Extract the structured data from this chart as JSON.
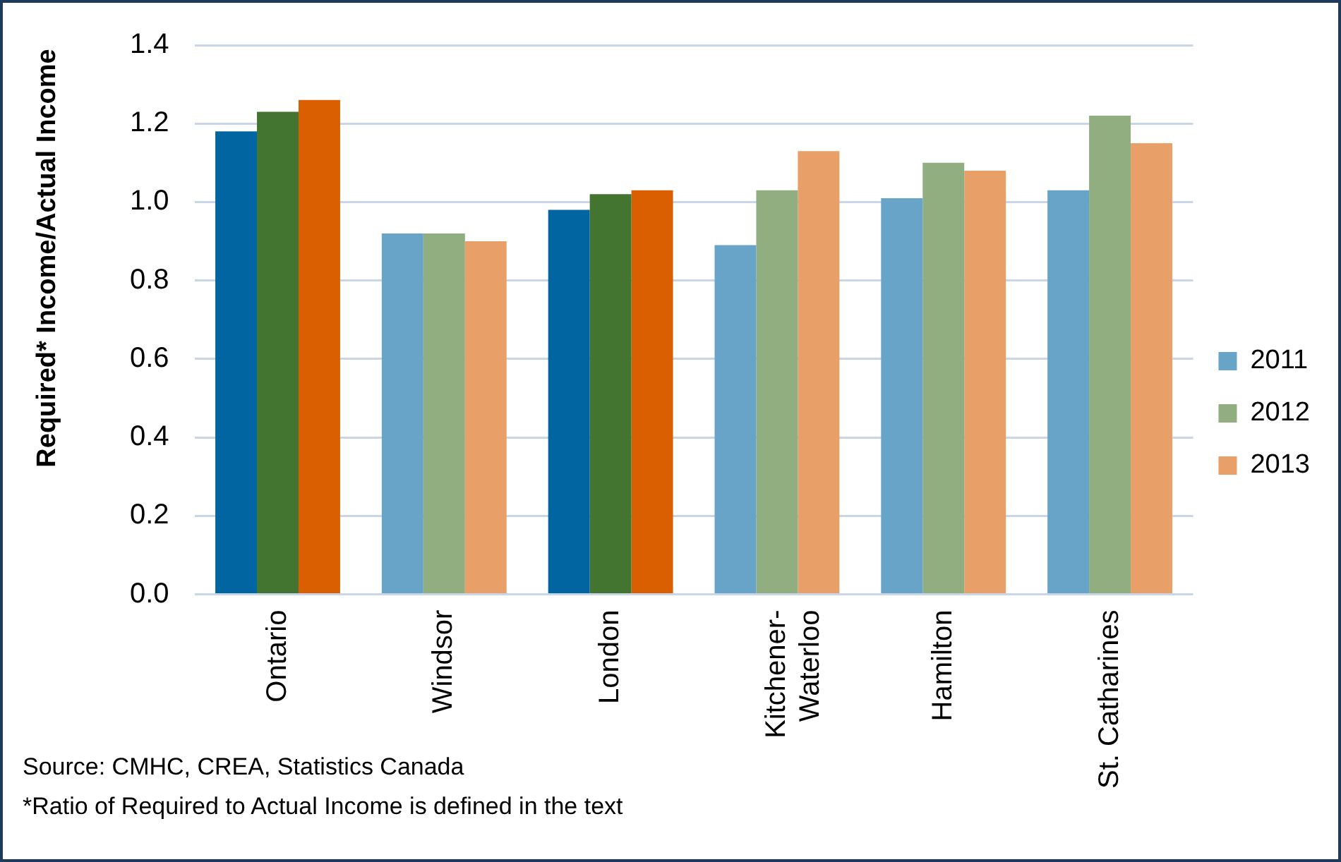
{
  "chart_data": {
    "type": "bar",
    "ylabel": "Required* Income/Actual Income",
    "categories": [
      "Ontario",
      "Windsor",
      "London",
      "Kitchener-Waterloo",
      "Hamilton",
      "St. Catharines"
    ],
    "series": [
      {
        "name": "2011",
        "color": "#68a4c8",
        "colors": [
          "#0065a0",
          "#68a4c8",
          "#0065a0",
          "#68a4c8",
          "#68a4c8",
          "#68a4c8"
        ],
        "values": [
          1.18,
          0.92,
          0.98,
          0.89,
          1.01,
          1.03
        ]
      },
      {
        "name": "2012",
        "color": "#90ae80",
        "colors": [
          "#437530",
          "#90ae80",
          "#437530",
          "#90ae80",
          "#90ae80",
          "#90ae80"
        ],
        "values": [
          1.23,
          0.92,
          1.02,
          1.03,
          1.1,
          1.22
        ]
      },
      {
        "name": "2013",
        "color": "#e8a068",
        "colors": [
          "#d95f00",
          "#e8a068",
          "#d95f00",
          "#e8a068",
          "#e8a068",
          "#e8a068"
        ],
        "values": [
          1.26,
          0.9,
          1.03,
          1.13,
          1.08,
          1.15
        ]
      }
    ],
    "ylim": [
      0,
      1.4
    ],
    "yticks": [
      {
        "value": 0,
        "label": "0.0"
      },
      {
        "value": 0.2,
        "label": "0.2"
      },
      {
        "value": 0.4,
        "label": "0.4"
      },
      {
        "value": 0.6,
        "label": "0.6"
      },
      {
        "value": 0.8,
        "label": "0.8"
      },
      {
        "value": 1,
        "label": "1.0"
      },
      {
        "value": 1.2,
        "label": "1.2"
      },
      {
        "value": 1.4,
        "label": "1.4"
      }
    ],
    "grid": "y",
    "legend": "right",
    "annotations": [
      "Source: CMHC, CREA, Statistics Canada",
      "*Ratio of Required to Actual Income is defined in the text"
    ]
  }
}
